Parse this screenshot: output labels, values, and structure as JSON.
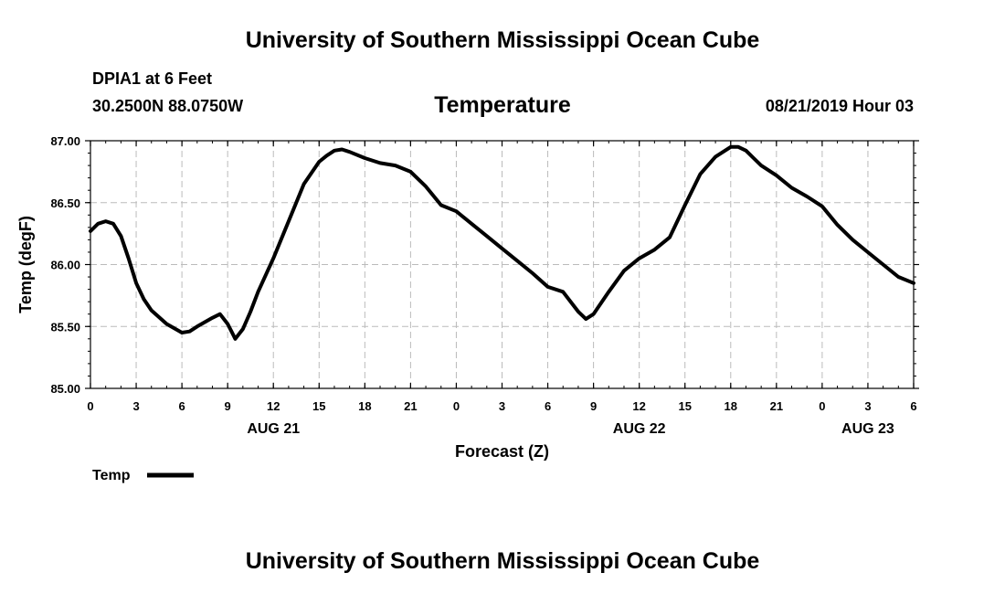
{
  "header": {
    "title": "University of Southern Mississippi Ocean Cube",
    "station": "DPIA1 at 6 Feet",
    "coords": "30.2500N 88.0750W",
    "chart_title": "Temperature",
    "datetime": "08/21/2019 Hour 03"
  },
  "footer": {
    "title": "University of Southern Mississippi Ocean Cube"
  },
  "colors": {
    "line": "#000000",
    "grid": "#bbbbbb",
    "axis": "#000000",
    "background": "#ffffff"
  },
  "chart_data": {
    "type": "line",
    "title": "Temperature",
    "xlabel": "Forecast (Z)",
    "ylabel": "Temp (degF)",
    "xlim": [
      0,
      54
    ],
    "ylim": [
      85.0,
      87.0
    ],
    "grid": true,
    "x_ticks": [
      0,
      3,
      6,
      9,
      12,
      15,
      18,
      21,
      24,
      27,
      30,
      33,
      36,
      39,
      42,
      45,
      48,
      51,
      54
    ],
    "x_tick_labels": [
      "0",
      "3",
      "6",
      "9",
      "12",
      "15",
      "18",
      "21",
      "0",
      "3",
      "6",
      "9",
      "12",
      "15",
      "18",
      "21",
      "0",
      "3",
      "6"
    ],
    "y_ticks": [
      85.0,
      85.5,
      86.0,
      86.5,
      87.0
    ],
    "y_tick_labels": [
      "85.00",
      "85.50",
      "86.00",
      "86.50",
      "87.00"
    ],
    "date_labels": [
      {
        "x": 12,
        "label": "AUG 21"
      },
      {
        "x": 36,
        "label": "AUG 22"
      },
      {
        "x": 51,
        "label": "AUG 23"
      }
    ],
    "legend": {
      "position": "bottom-left",
      "entries": [
        "Temp"
      ]
    },
    "series": [
      {
        "name": "Temp",
        "x": [
          0,
          0.5,
          1,
          1.5,
          2,
          2.5,
          3,
          3.5,
          4,
          5,
          6,
          6.5,
          7,
          8,
          8.5,
          9,
          9.5,
          10,
          10.5,
          11,
          12,
          13,
          14,
          15,
          15.5,
          16,
          16.5,
          17,
          18,
          19,
          20,
          21,
          22,
          23,
          24,
          25,
          26,
          27,
          28,
          29,
          30,
          31,
          32,
          32.5,
          33,
          34,
          35,
          36,
          37,
          38,
          39,
          40,
          41,
          42,
          42.5,
          43,
          43.5,
          44,
          45,
          46,
          47,
          48,
          49,
          50,
          51,
          52,
          53,
          54
        ],
        "values": [
          86.27,
          86.33,
          86.35,
          86.33,
          86.23,
          86.05,
          85.85,
          85.72,
          85.63,
          85.52,
          85.45,
          85.46,
          85.5,
          85.57,
          85.6,
          85.52,
          85.4,
          85.48,
          85.62,
          85.78,
          86.05,
          86.35,
          86.65,
          86.83,
          86.88,
          86.92,
          86.93,
          86.91,
          86.86,
          86.82,
          86.8,
          86.75,
          86.63,
          86.48,
          86.43,
          86.33,
          86.23,
          86.13,
          86.03,
          85.93,
          85.82,
          85.78,
          85.62,
          85.56,
          85.6,
          85.78,
          85.95,
          86.05,
          86.12,
          86.22,
          86.48,
          86.73,
          86.87,
          86.95,
          86.95,
          86.92,
          86.86,
          86.8,
          86.72,
          86.62,
          86.55,
          86.47,
          86.32,
          86.2,
          86.1,
          86.0,
          85.9,
          85.85
        ]
      }
    ]
  }
}
